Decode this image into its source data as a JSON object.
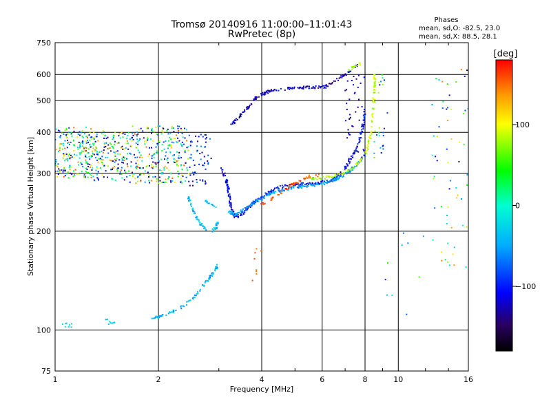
{
  "chart_data": {
    "type": "scatter",
    "title": "Tromsø 20140916 11:00:00–11:01:43",
    "subtitle": "RwPretec (8p)",
    "xlabel": "Frequency [MHz]",
    "ylabel": "Stationary phase Virtual Height [km]",
    "x_scale": "log",
    "y_scale": "log",
    "xlim": [
      1,
      16
    ],
    "ylim": [
      75,
      750
    ],
    "x_ticks": [
      1,
      2,
      4,
      6,
      8,
      10,
      16
    ],
    "x_tick_labels": [
      "1",
      "2",
      "4",
      "6",
      "8",
      "10",
      "16"
    ],
    "y_ticks": [
      75,
      100,
      200,
      300,
      400,
      500,
      600,
      750
    ],
    "y_tick_labels": [
      "75",
      "100",
      "200",
      "300",
      "400",
      "500",
      "600",
      "750"
    ],
    "grid": true,
    "stats": {
      "heading": "Phases",
      "line_o": "mean, sd,O: -82.5, 23.0",
      "line_x": "mean, sd,X:  88.5, 28.1"
    },
    "colorbar": {
      "label": "[deg]",
      "range": [
        -180,
        180
      ],
      "ticks": [
        -100,
        0,
        100
      ],
      "tick_labels": [
        "−100",
        "0",
        "100"
      ],
      "colormap": "rainbow"
    },
    "point_groups": [
      {
        "x": [
          1.0,
          1.3
        ],
        "y": [
          290,
          415
        ],
        "phase": [
          -160,
          160
        ],
        "count": 230
      },
      {
        "x": [
          1.3,
          1.65
        ],
        "y": [
          285,
          405
        ],
        "phase": [
          -160,
          160
        ],
        "count": 160
      },
      {
        "x": [
          1.65,
          2.45
        ],
        "y": [
          280,
          420
        ],
        "phase": [
          -160,
          160
        ],
        "count": 280
      },
      {
        "x": [
          2.45,
          2.85
        ],
        "y": [
          275,
          395
        ],
        "phase": [
          -150,
          -60
        ],
        "count": 60
      },
      {
        "x": [
          1.05,
          1.12
        ],
        "y": [
          102,
          105
        ],
        "phase": [
          -40,
          -10
        ],
        "count": 8
      },
      {
        "x": [
          1.4,
          1.5
        ],
        "y": [
          104,
          108
        ],
        "phase": [
          -40,
          -10
        ],
        "count": 10
      },
      {
        "curve": [
          [
            1.9,
            109
          ],
          [
            2.1,
            111
          ],
          [
            2.2,
            114
          ],
          [
            2.35,
            118
          ],
          [
            2.45,
            122
          ],
          [
            2.6,
            130
          ],
          [
            2.75,
            140
          ],
          [
            2.9,
            150
          ],
          [
            2.99,
            158
          ]
        ],
        "phase": [
          -70,
          -20
        ],
        "count": 90
      },
      {
        "curve": [
          [
            2.45,
            255
          ],
          [
            2.5,
            235
          ],
          [
            2.58,
            220
          ],
          [
            2.68,
            208
          ],
          [
            2.78,
            202
          ],
          [
            2.88,
            201
          ],
          [
            2.95,
            206
          ],
          [
            2.98,
            215
          ]
        ],
        "phase": [
          -60,
          -10
        ],
        "count": 70
      },
      {
        "curve": [
          [
            2.7,
            252
          ],
          [
            2.82,
            240
          ],
          [
            2.95,
            238
          ]
        ],
        "phase": [
          -60,
          -10
        ],
        "count": 12
      },
      {
        "curve": [
          [
            3.05,
            310
          ],
          [
            3.15,
            290
          ],
          [
            3.2,
            265
          ],
          [
            3.25,
            235
          ],
          [
            3.35,
            220
          ],
          [
            3.55,
            228
          ],
          [
            3.8,
            245
          ],
          [
            4.1,
            260
          ],
          [
            4.5,
            272
          ],
          [
            5.0,
            278
          ],
          [
            5.8,
            280
          ],
          [
            6.4,
            285
          ],
          [
            6.8,
            300
          ],
          [
            7.2,
            325
          ],
          [
            7.6,
            360
          ],
          [
            7.9,
            420
          ],
          [
            8.0,
            470
          ]
        ],
        "phase": [
          -140,
          -80
        ],
        "count": 300
      },
      {
        "curve": [
          [
            3.2,
            230
          ],
          [
            3.35,
            225
          ],
          [
            3.6,
            235
          ],
          [
            3.9,
            248
          ],
          [
            4.3,
            262
          ],
          [
            4.8,
            270
          ],
          [
            5.5,
            275
          ],
          [
            6.1,
            280
          ],
          [
            6.6,
            288
          ],
          [
            7.1,
            300
          ],
          [
            7.6,
            320
          ],
          [
            7.95,
            340
          ]
        ],
        "phase": [
          -75,
          -30
        ],
        "count": 260
      },
      {
        "curve": [
          [
            4.0,
            240
          ],
          [
            4.3,
            252
          ],
          [
            4.6,
            265
          ],
          [
            5.0,
            280
          ],
          [
            5.5,
            293
          ],
          [
            5.9,
            296
          ]
        ],
        "phase": [
          140,
          175
        ],
        "count": 60
      },
      {
        "curve": [
          [
            5.6,
            288
          ],
          [
            6.2,
            292
          ],
          [
            6.8,
            298
          ],
          [
            7.3,
            310
          ],
          [
            7.7,
            325
          ],
          [
            8.05,
            345
          ],
          [
            8.3,
            390
          ],
          [
            8.45,
            460
          ],
          [
            8.55,
            600
          ]
        ],
        "phase": [
          60,
          110
        ],
        "count": 130
      },
      {
        "curve": [
          [
            3.25,
            420
          ],
          [
            3.4,
            440
          ],
          [
            3.6,
            470
          ],
          [
            3.85,
            510
          ],
          [
            4.2,
            535
          ],
          [
            4.8,
            545
          ],
          [
            5.6,
            548
          ],
          [
            6.1,
            550
          ],
          [
            6.5,
            570
          ],
          [
            7.0,
            600
          ],
          [
            7.4,
            630
          ],
          [
            7.65,
            645
          ]
        ],
        "phase": [
          -150,
          -95
        ],
        "count": 170
      },
      {
        "curve": [
          [
            7.2,
            620
          ],
          [
            7.5,
            635
          ],
          [
            7.8,
            650
          ]
        ],
        "phase": [
          70,
          110
        ],
        "count": 15
      },
      {
        "x": [
          7.0,
          8.0
        ],
        "y": [
          320,
          600
        ],
        "phase": [
          -150,
          -100
        ],
        "count": 45
      },
      {
        "x": [
          8.5,
          9.3
        ],
        "y": [
          330,
          640
        ],
        "phase": [
          -160,
          120
        ],
        "count": 25
      },
      {
        "x": [
          3.75,
          4.05
        ],
        "y": [
          140,
          185
        ],
        "phase": [
          140,
          170
        ],
        "count": 8
      },
      {
        "x": [
          12.5,
          16.0
        ],
        "y": [
          150,
          650
        ],
        "phase": [
          -160,
          150
        ],
        "count": 60
      },
      {
        "x": [
          9.0,
          12.0
        ],
        "y": [
          110,
          200
        ],
        "phase": [
          -120,
          100
        ],
        "count": 10
      }
    ]
  }
}
